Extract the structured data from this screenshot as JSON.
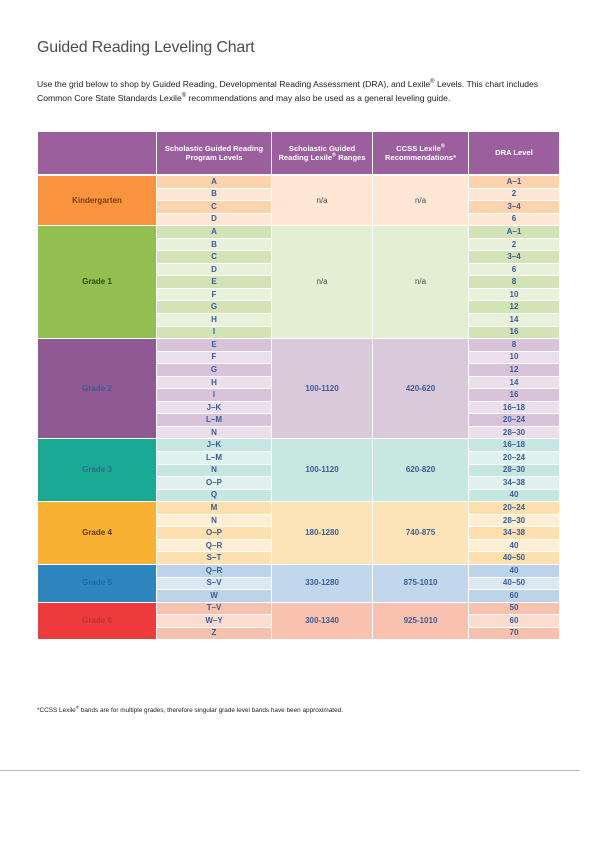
{
  "title": "Guided Reading Leveling Chart",
  "intro": {
    "part1": "Use the grid below to shop by Guided Reading, Developmental Reading Assessment (DRA), and Lexile",
    "part2": " Levels. This chart includes Common Core State Standards Lexile",
    "part3": " recommendations and may also be used as a general leveling guide.",
    "registered": "®"
  },
  "table": {
    "headers": {
      "col1": "",
      "col2": "Scholastic Guided Reading Program Levels",
      "col3a": "Scholastic Guided Reading Lexile",
      "col3b": " Ranges",
      "col4a": "CCSS Lexile",
      "col4b": " Recommendations*",
      "col5": "DRA Level",
      "registered": "®"
    },
    "grades": [
      {
        "name": "Kindergarten",
        "header_color": "#f7943d",
        "row_a": "#fcd3ad",
        "row_b": "#fee8d4",
        "grade_text": "#7a3f0c",
        "range_text": "#4b4b4b",
        "lexile": "n/a",
        "ccss": "n/a",
        "range_bg": "#fee8d4",
        "rows": [
          [
            "A",
            "A–1"
          ],
          [
            "B",
            "2"
          ],
          [
            "C",
            "3–4"
          ],
          [
            "D",
            "6"
          ]
        ]
      },
      {
        "name": "Grade 1",
        "header_color": "#92c050",
        "row_a": "#d2e3b5",
        "row_b": "#e8f1da",
        "grade_text": "#2c4b0f",
        "range_text": "#4b4b4b",
        "lexile": "n/a",
        "ccss": "n/a",
        "range_bg": "#e3efd2",
        "rows": [
          [
            "A",
            "A–1"
          ],
          [
            "B",
            "2"
          ],
          [
            "C",
            "3–4"
          ],
          [
            "D",
            "6"
          ],
          [
            "E",
            "8"
          ],
          [
            "F",
            "10"
          ],
          [
            "G",
            "12"
          ],
          [
            "H",
            "14"
          ],
          [
            "I",
            "16"
          ]
        ]
      },
      {
        "name": "Grade 2",
        "header_color": "#8f5a93",
        "row_a": "#d9c3da",
        "row_b": "#ebdfeb",
        "grade_text": "#3a5d9a",
        "range_text": "#3a5d9a",
        "lexile": "100-1120",
        "ccss": "420-620",
        "range_bg": "#dac8db",
        "rows": [
          [
            "E",
            "8"
          ],
          [
            "F",
            "10"
          ],
          [
            "G",
            "12"
          ],
          [
            "H",
            "14"
          ],
          [
            "I",
            "16"
          ],
          [
            "J–K",
            "16–18"
          ],
          [
            "L–M",
            "20–24"
          ],
          [
            "N",
            "28–30"
          ]
        ]
      },
      {
        "name": "Grade 3",
        "header_color": "#1aa992",
        "row_a": "#c5e7e0",
        "row_b": "#e0f2ee",
        "grade_text": "#2a6d8f",
        "range_text": "#3a5d9a",
        "lexile": "100-1120",
        "ccss": "620-820",
        "range_bg": "#c9e7e1",
        "rows": [
          [
            "J–K",
            "16–18"
          ],
          [
            "L–M",
            "20–24"
          ],
          [
            "N",
            "28–30"
          ],
          [
            "O–P",
            "34–38"
          ],
          [
            "Q",
            "40"
          ]
        ]
      },
      {
        "name": "Grade 4",
        "header_color": "#f8b133",
        "row_a": "#fde0ae",
        "row_b": "#feeed4",
        "grade_text": "#5c3a00",
        "range_text": "#3a5d9a",
        "lexile": "180-1280",
        "ccss": "740-875",
        "range_bg": "#fde3b8",
        "rows": [
          [
            "M",
            "20–24"
          ],
          [
            "N",
            "28–30"
          ],
          [
            "O–P",
            "34–38"
          ],
          [
            "Q–R",
            "40"
          ],
          [
            "S–T",
            "40–50"
          ]
        ]
      },
      {
        "name": "Grade 5",
        "header_color": "#2d86c0",
        "row_a": "#bcd4ea",
        "row_b": "#dbe8f4",
        "grade_text": "#1c6aa8",
        "range_text": "#3a5d9a",
        "lexile": "330-1280",
        "ccss": "875-1010",
        "range_bg": "#c2d7ec",
        "rows": [
          [
            "Q–R",
            "40"
          ],
          [
            "S–V",
            "40–50"
          ],
          [
            "W",
            "60"
          ]
        ]
      },
      {
        "name": "Grade 6",
        "header_color": "#ec3a3d",
        "row_a": "#f8c1ad",
        "row_b": "#fcdccf",
        "grade_text": "#c8302f",
        "range_text": "#3a5d9a",
        "lexile": "300-1340",
        "ccss": "925-1010",
        "range_bg": "#f8c2ae",
        "rows": [
          [
            "T–V",
            "50"
          ],
          [
            "W–Y",
            "60"
          ],
          [
            "Z",
            "70"
          ]
        ]
      }
    ]
  },
  "footnote": {
    "part1": "*CCSS Lexile",
    "part2": " bands are for multiple grades, therefore singular grade level bands have been approximated.",
    "registered": "®"
  }
}
